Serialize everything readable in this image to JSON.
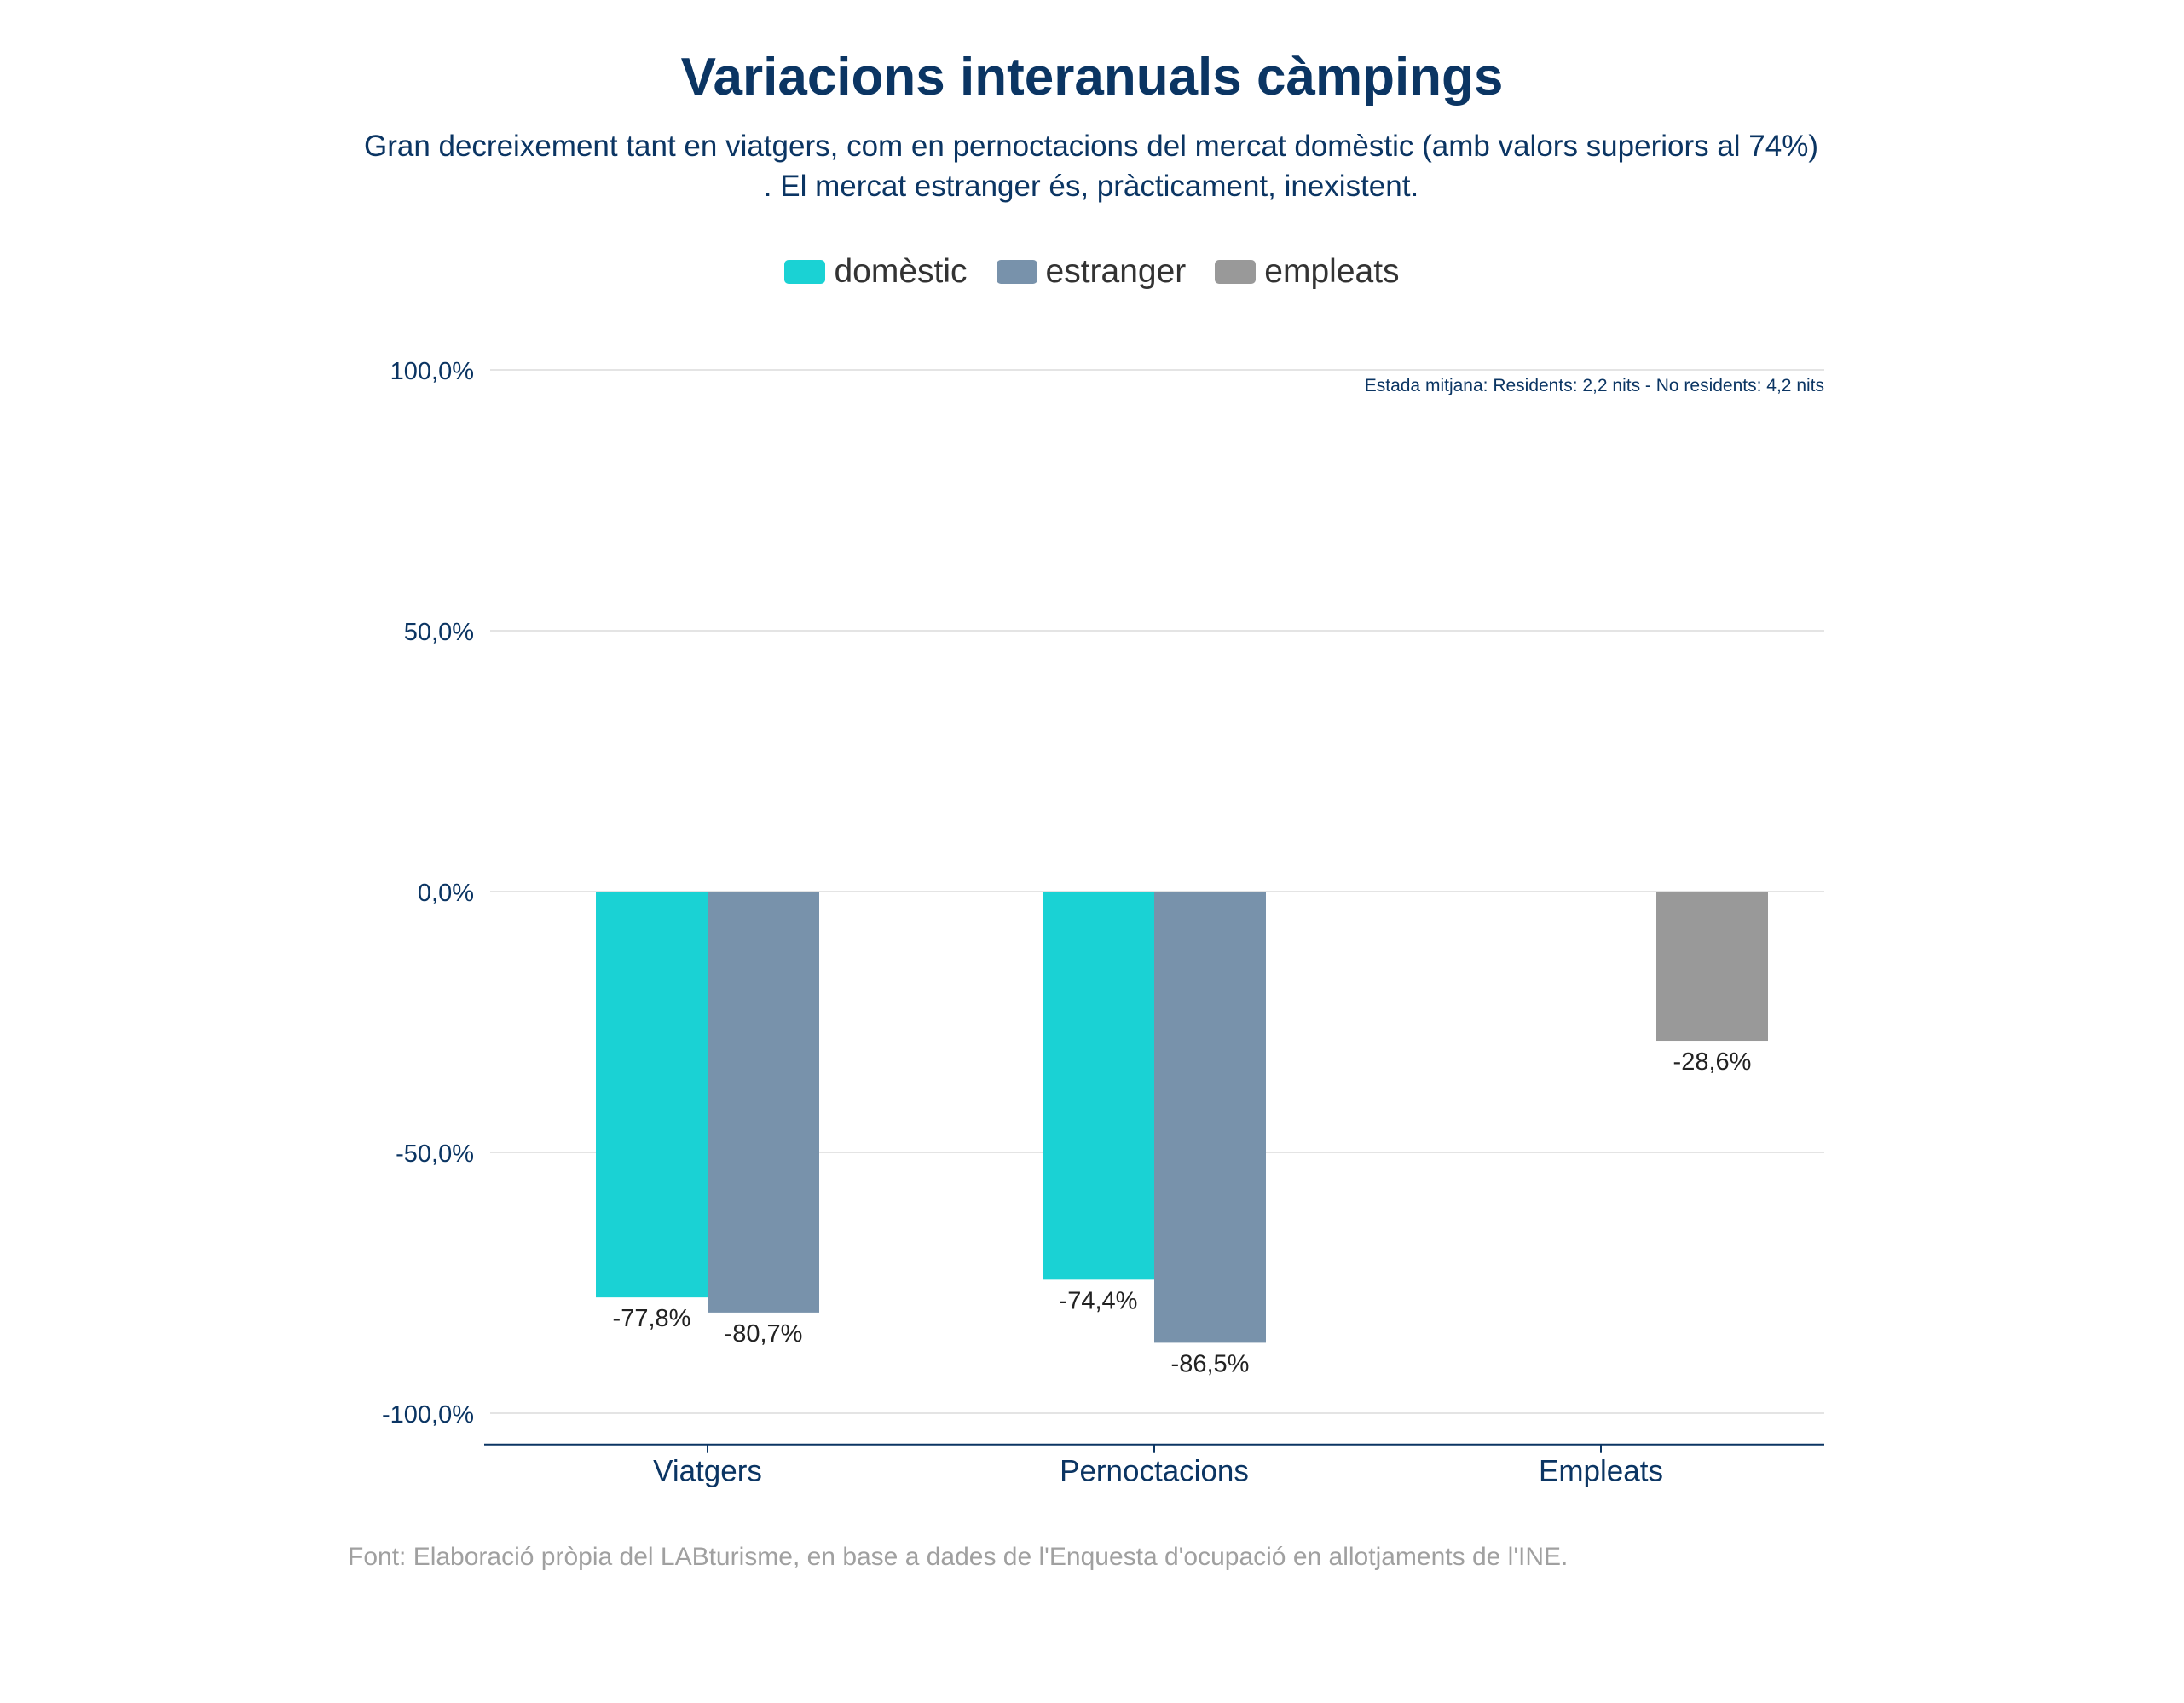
{
  "title": "Variacions interanuals càmpings",
  "subtitle_line1": "Gran decreixement tant en viatgers, com en pernoctacions del mercat domèstic (amb valors superiors al 74%)",
  "subtitle_line2": ". El mercat estranger és, pràcticament, inexistent.",
  "note": "Estada mitjana: Residents: 2,2 nits - No residents: 4,2 nits",
  "source": "Font: Elaboració pròpia del LABturisme, en base a dades de l'Enquesta d'ocupació en allotjaments de l'INE.",
  "colors": {
    "domestic": "#1ad2d4",
    "estranger": "#7892ab",
    "empleats": "#999999",
    "text": "#0b3563",
    "grid": "#e4e4e4"
  },
  "chart_data": {
    "type": "bar",
    "categories": [
      "Viatgers",
      "Pernoctacions",
      "Empleats"
    ],
    "series": [
      {
        "name": "domèstic",
        "color": "#1ad2d4",
        "values": [
          -77.8,
          -74.4,
          null
        ],
        "labels": [
          "-77,8%",
          "-74,4%",
          ""
        ]
      },
      {
        "name": "estranger",
        "color": "#7892ab",
        "values": [
          -80.7,
          -86.5,
          null
        ],
        "labels": [
          "-80,7%",
          "-86,5%",
          ""
        ]
      },
      {
        "name": "empleats",
        "color": "#999999",
        "values": [
          null,
          null,
          -28.6
        ],
        "labels": [
          "",
          "",
          "-28,6%"
        ]
      }
    ],
    "yticks": [
      100,
      50,
      0,
      -50,
      -100
    ],
    "ytick_labels": [
      "100,0%",
      "50,0%",
      "0,0%",
      "-50,0%",
      "-100,0%"
    ],
    "ylim": [
      -106,
      100
    ],
    "grid": true,
    "legend_position": "top-center"
  }
}
